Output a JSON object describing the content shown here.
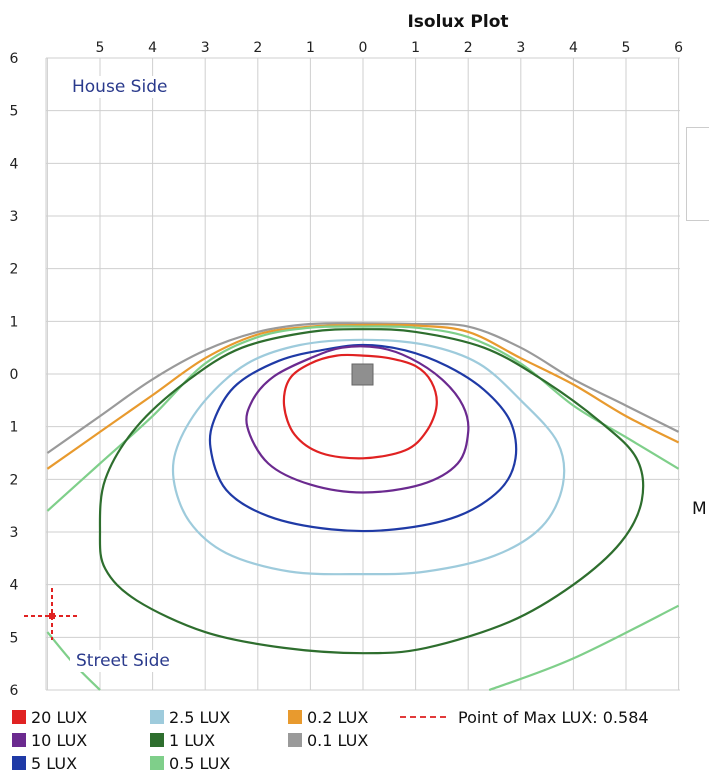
{
  "chart_data": {
    "type": "contour",
    "title": "Isolux Plot",
    "x_tick_labels": [
      "5",
      "4",
      "3",
      "2",
      "1",
      "0",
      "1",
      "2",
      "3",
      "4",
      "5",
      "6"
    ],
    "y_tick_labels": [
      "6",
      "5",
      "4",
      "3",
      "2",
      "1",
      "0",
      "1",
      "2",
      "3",
      "4",
      "5",
      "6"
    ],
    "xlim": [
      -5.5,
      6
    ],
    "ylim": [
      -6,
      6
    ],
    "top_label": "House Side",
    "bottom_label": "Street Side",
    "luminaire": {
      "x": 0,
      "y": 0
    },
    "max_point": {
      "x": -5.8,
      "y": -4.8,
      "label": "Point of Max LUX: 0.584"
    },
    "series": [
      {
        "name": "20 LUX",
        "color": "#e02222",
        "closed": true,
        "points": [
          [
            -1.5,
            -0.6
          ],
          [
            -1.4,
            -0.1
          ],
          [
            -1.0,
            0.2
          ],
          [
            -0.5,
            0.35
          ],
          [
            0,
            0.35
          ],
          [
            0.5,
            0.3
          ],
          [
            1.0,
            0.15
          ],
          [
            1.3,
            -0.15
          ],
          [
            1.4,
            -0.6
          ],
          [
            1.2,
            -1.1
          ],
          [
            0.8,
            -1.45
          ],
          [
            0,
            -1.6
          ],
          [
            -0.8,
            -1.5
          ],
          [
            -1.3,
            -1.15
          ]
        ]
      },
      {
        "name": "10 LUX",
        "color": "#6b2a8f",
        "closed": true,
        "points": [
          [
            -2.2,
            -1.0
          ],
          [
            -2.1,
            -0.5
          ],
          [
            -1.7,
            -0.05
          ],
          [
            -1.0,
            0.3
          ],
          [
            -0.4,
            0.5
          ],
          [
            0.3,
            0.5
          ],
          [
            0.9,
            0.3
          ],
          [
            1.5,
            -0.1
          ],
          [
            1.9,
            -0.6
          ],
          [
            2.0,
            -1.1
          ],
          [
            1.8,
            -1.7
          ],
          [
            1.1,
            -2.1
          ],
          [
            0,
            -2.25
          ],
          [
            -1.0,
            -2.1
          ],
          [
            -1.8,
            -1.7
          ]
        ]
      },
      {
        "name": "5 LUX",
        "color": "#1f3aa6",
        "closed": true,
        "points": [
          [
            -2.9,
            -1.4
          ],
          [
            -2.8,
            -0.8
          ],
          [
            -2.4,
            -0.2
          ],
          [
            -1.6,
            0.25
          ],
          [
            -0.8,
            0.45
          ],
          [
            0,
            0.55
          ],
          [
            0.8,
            0.45
          ],
          [
            1.6,
            0.15
          ],
          [
            2.3,
            -0.3
          ],
          [
            2.8,
            -0.9
          ],
          [
            2.9,
            -1.6
          ],
          [
            2.6,
            -2.2
          ],
          [
            1.8,
            -2.7
          ],
          [
            0.6,
            -2.95
          ],
          [
            -0.6,
            -2.95
          ],
          [
            -1.8,
            -2.7
          ],
          [
            -2.6,
            -2.2
          ]
        ]
      },
      {
        "name": "2.5 LUX",
        "color": "#9ecbdc",
        "closed": true,
        "points": [
          [
            -3.6,
            -2.0
          ],
          [
            -3.5,
            -1.3
          ],
          [
            -3.0,
            -0.5
          ],
          [
            -2.2,
            0.2
          ],
          [
            -1.2,
            0.55
          ],
          [
            0,
            0.65
          ],
          [
            1.2,
            0.55
          ],
          [
            2.2,
            0.2
          ],
          [
            3.0,
            -0.5
          ],
          [
            3.7,
            -1.3
          ],
          [
            3.8,
            -2.1
          ],
          [
            3.4,
            -2.9
          ],
          [
            2.5,
            -3.45
          ],
          [
            1.2,
            -3.75
          ],
          [
            0,
            -3.8
          ],
          [
            -1.4,
            -3.75
          ],
          [
            -2.6,
            -3.4
          ],
          [
            -3.3,
            -2.8
          ]
        ]
      },
      {
        "name": "1 LUX",
        "color": "#2e6e2e",
        "closed": true,
        "points": [
          [
            -5.0,
            -3.0
          ],
          [
            -4.9,
            -2.0
          ],
          [
            -4.3,
            -1.0
          ],
          [
            -3.3,
            -0.1
          ],
          [
            -2.3,
            0.5
          ],
          [
            -1.0,
            0.8
          ],
          [
            0,
            0.85
          ],
          [
            1.0,
            0.8
          ],
          [
            2.3,
            0.5
          ],
          [
            3.4,
            -0.1
          ],
          [
            4.5,
            -0.9
          ],
          [
            5.2,
            -1.6
          ],
          [
            5.3,
            -2.4
          ],
          [
            4.9,
            -3.2
          ],
          [
            4.0,
            -4.0
          ],
          [
            2.8,
            -4.7
          ],
          [
            1.2,
            -5.2
          ],
          [
            0,
            -5.3
          ],
          [
            -1.5,
            -5.2
          ],
          [
            -3.0,
            -4.9
          ],
          [
            -4.3,
            -4.3
          ],
          [
            -4.9,
            -3.7
          ]
        ]
      },
      {
        "name": "0.5 LUX",
        "color": "#7fcf8a",
        "closed": false,
        "points": [
          [
            -6.0,
            -2.6
          ],
          [
            -5.0,
            -1.7
          ],
          [
            -4.0,
            -0.8
          ],
          [
            -3.0,
            0.2
          ],
          [
            -2.0,
            0.7
          ],
          [
            -1.0,
            0.88
          ],
          [
            0,
            0.9
          ],
          [
            1.0,
            0.88
          ],
          [
            2.0,
            0.7
          ],
          [
            3.0,
            0.2
          ],
          [
            4.0,
            -0.6
          ],
          [
            5.0,
            -1.2
          ],
          [
            6.0,
            -1.8
          ]
        ]
      },
      {
        "name": "0.5 LUX",
        "color": "#7fcf8a",
        "closed": false,
        "points": [
          [
            -6.0,
            -4.9
          ],
          [
            -5.5,
            -5.5
          ],
          [
            -5.0,
            -6.0
          ]
        ]
      },
      {
        "name": "0.5 LUX",
        "color": "#7fcf8a",
        "closed": false,
        "points": [
          [
            2.4,
            -6.0
          ],
          [
            4.0,
            -5.4
          ],
          [
            6.0,
            -4.4
          ]
        ]
      },
      {
        "name": "0.2 LUX",
        "color": "#e89a2e",
        "closed": false,
        "points": [
          [
            -6.0,
            -1.8
          ],
          [
            -5.0,
            -1.1
          ],
          [
            -4.0,
            -0.4
          ],
          [
            -3.0,
            0.3
          ],
          [
            -2.0,
            0.75
          ],
          [
            -1.0,
            0.9
          ],
          [
            0,
            0.93
          ],
          [
            1.0,
            0.92
          ],
          [
            2.0,
            0.8
          ],
          [
            3.0,
            0.3
          ],
          [
            4.0,
            -0.2
          ],
          [
            5.0,
            -0.8
          ],
          [
            6.0,
            -1.3
          ]
        ]
      },
      {
        "name": "0.1 LUX",
        "color": "#9a9a9a",
        "closed": false,
        "points": [
          [
            -6.0,
            -1.5
          ],
          [
            -5.0,
            -0.8
          ],
          [
            -4.0,
            -0.1
          ],
          [
            -3.0,
            0.45
          ],
          [
            -2.0,
            0.8
          ],
          [
            -1.0,
            0.95
          ],
          [
            0,
            0.96
          ],
          [
            1.0,
            0.95
          ],
          [
            2.0,
            0.9
          ],
          [
            3.0,
            0.5
          ],
          [
            4.0,
            -0.1
          ],
          [
            5.0,
            -0.6
          ],
          [
            6.0,
            -1.1
          ]
        ]
      }
    ]
  },
  "legend": {
    "items": [
      {
        "label": "20 LUX",
        "color": "#e02222"
      },
      {
        "label": "10 LUX",
        "color": "#6b2a8f"
      },
      {
        "label": "5 LUX",
        "color": "#1f3aa6"
      },
      {
        "label": "2.5 LUX",
        "color": "#9ecbdc"
      },
      {
        "label": "1 LUX",
        "color": "#2e6e2e"
      },
      {
        "label": "0.5 LUX",
        "color": "#7fcf8a"
      },
      {
        "label": "0.2 LUX",
        "color": "#e89a2e"
      },
      {
        "label": "0.1 LUX",
        "color": "#9a9a9a"
      }
    ],
    "max_point_label": "Point of Max LUX: 0.584"
  },
  "edge_text": "M"
}
